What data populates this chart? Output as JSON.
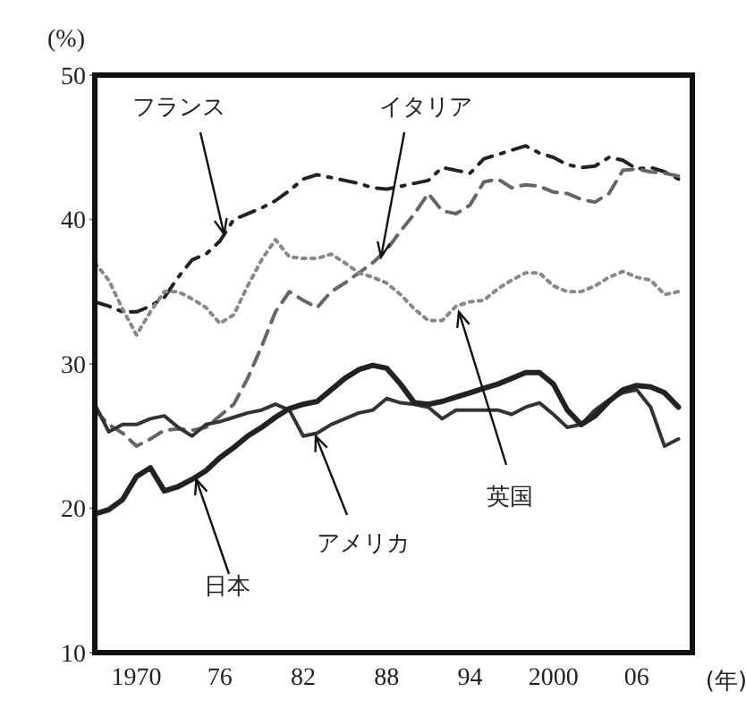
{
  "chart_data": {
    "type": "line",
    "ylabel": "(%)",
    "xlabel": "(年)",
    "x": [
      1967,
      1968,
      1969,
      1970,
      1971,
      1972,
      1973,
      1974,
      1975,
      1976,
      1977,
      1978,
      1979,
      1980,
      1981,
      1982,
      1983,
      1984,
      1985,
      1986,
      1987,
      1988,
      1989,
      1990,
      1991,
      1992,
      1993,
      1994,
      1995,
      1996,
      1997,
      1998,
      1999,
      2000,
      2001,
      2002,
      2003,
      2004,
      2005,
      2006,
      2007,
      2008,
      2009
    ],
    "xlim": [
      1967,
      2010
    ],
    "xticks": [
      1970,
      {
        "value": 1976,
        "label": "76"
      },
      {
        "value": 1982,
        "label": "82"
      },
      {
        "value": 1988,
        "label": "88"
      },
      {
        "value": 1994,
        "label": "94"
      },
      2000,
      {
        "value": 2006,
        "label": "06"
      }
    ],
    "ylim": [
      10,
      50
    ],
    "yticks": [
      10,
      20,
      30,
      40,
      50
    ],
    "grid": false,
    "legend": false,
    "marker": "none",
    "series": [
      {
        "name": "フランス",
        "color": "#222222",
        "line_style": "dashed",
        "values": [
          34.3,
          34.0,
          33.6,
          33.6,
          34.0,
          34.6,
          36.0,
          37.2,
          37.6,
          38.5,
          40.0,
          40.4,
          40.8,
          41.3,
          42.0,
          42.8,
          43.1,
          42.9,
          42.7,
          42.5,
          42.2,
          42.1,
          42.3,
          42.5,
          42.7,
          43.6,
          43.4,
          43.2,
          44.2,
          44.5,
          44.8,
          45.1,
          44.6,
          44.3,
          43.8,
          43.6,
          43.7,
          44.3,
          44.1,
          43.5,
          43.6,
          43.3,
          42.8
        ]
      },
      {
        "name": "イタリア",
        "color": "#666666",
        "line_style": "dashed",
        "values": [
          26.8,
          25.8,
          25.2,
          24.3,
          24.8,
          25.4,
          25.5,
          25.4,
          25.6,
          26.4,
          27.2,
          29.0,
          31.2,
          33.6,
          35.0,
          34.4,
          33.9,
          35.0,
          35.6,
          36.3,
          37.0,
          37.9,
          39.2,
          40.4,
          41.8,
          40.6,
          40.4,
          41.0,
          42.6,
          42.8,
          42.2,
          42.4,
          42.3,
          41.9,
          41.8,
          41.4,
          41.2,
          41.8,
          43.4,
          43.5,
          43.3,
          43.2,
          43.0
        ]
      },
      {
        "name": "英国",
        "color": "#888888",
        "line_style": "dotted",
        "values": [
          37.0,
          35.8,
          33.8,
          32.0,
          33.6,
          35.0,
          35.0,
          34.5,
          33.9,
          32.8,
          33.4,
          35.4,
          37.2,
          38.6,
          37.4,
          37.3,
          37.3,
          37.6,
          37.0,
          36.3,
          36.0,
          35.6,
          34.8,
          33.8,
          33.0,
          33.0,
          34.0,
          34.3,
          34.4,
          35.2,
          35.8,
          36.3,
          36.3,
          35.4,
          35.0,
          35.0,
          35.4,
          36.0,
          36.4,
          36.0,
          35.8,
          34.8,
          35.0
        ]
      },
      {
        "name": "アメリカ",
        "color": "#333333",
        "line_style": "solid",
        "values": [
          27.2,
          25.3,
          25.8,
          25.8,
          26.2,
          26.4,
          25.6,
          25.0,
          25.8,
          26.0,
          26.3,
          26.6,
          26.8,
          27.2,
          26.8,
          25.0,
          25.2,
          25.8,
          26.2,
          26.6,
          26.8,
          27.6,
          27.3,
          27.2,
          27.0,
          26.2,
          26.8,
          26.8,
          26.8,
          26.8,
          26.5,
          27.0,
          27.3,
          26.5,
          25.6,
          25.8,
          26.8,
          27.5,
          28.0,
          28.2,
          27.0,
          24.3,
          24.8
        ]
      },
      {
        "name": "日本",
        "color": "#222222",
        "line_style": "solid",
        "values": [
          19.6,
          19.9,
          20.6,
          22.2,
          22.8,
          21.2,
          21.5,
          22.0,
          22.6,
          23.5,
          24.2,
          25.0,
          25.6,
          26.3,
          26.9,
          27.2,
          27.4,
          28.2,
          29.0,
          29.6,
          29.9,
          29.7,
          28.6,
          27.3,
          27.2,
          27.4,
          27.7,
          28.0,
          28.3,
          28.6,
          29.0,
          29.4,
          29.4,
          28.6,
          26.8,
          25.8,
          26.4,
          27.4,
          28.2,
          28.5,
          28.4,
          28.0,
          27.0
        ]
      }
    ]
  }
}
